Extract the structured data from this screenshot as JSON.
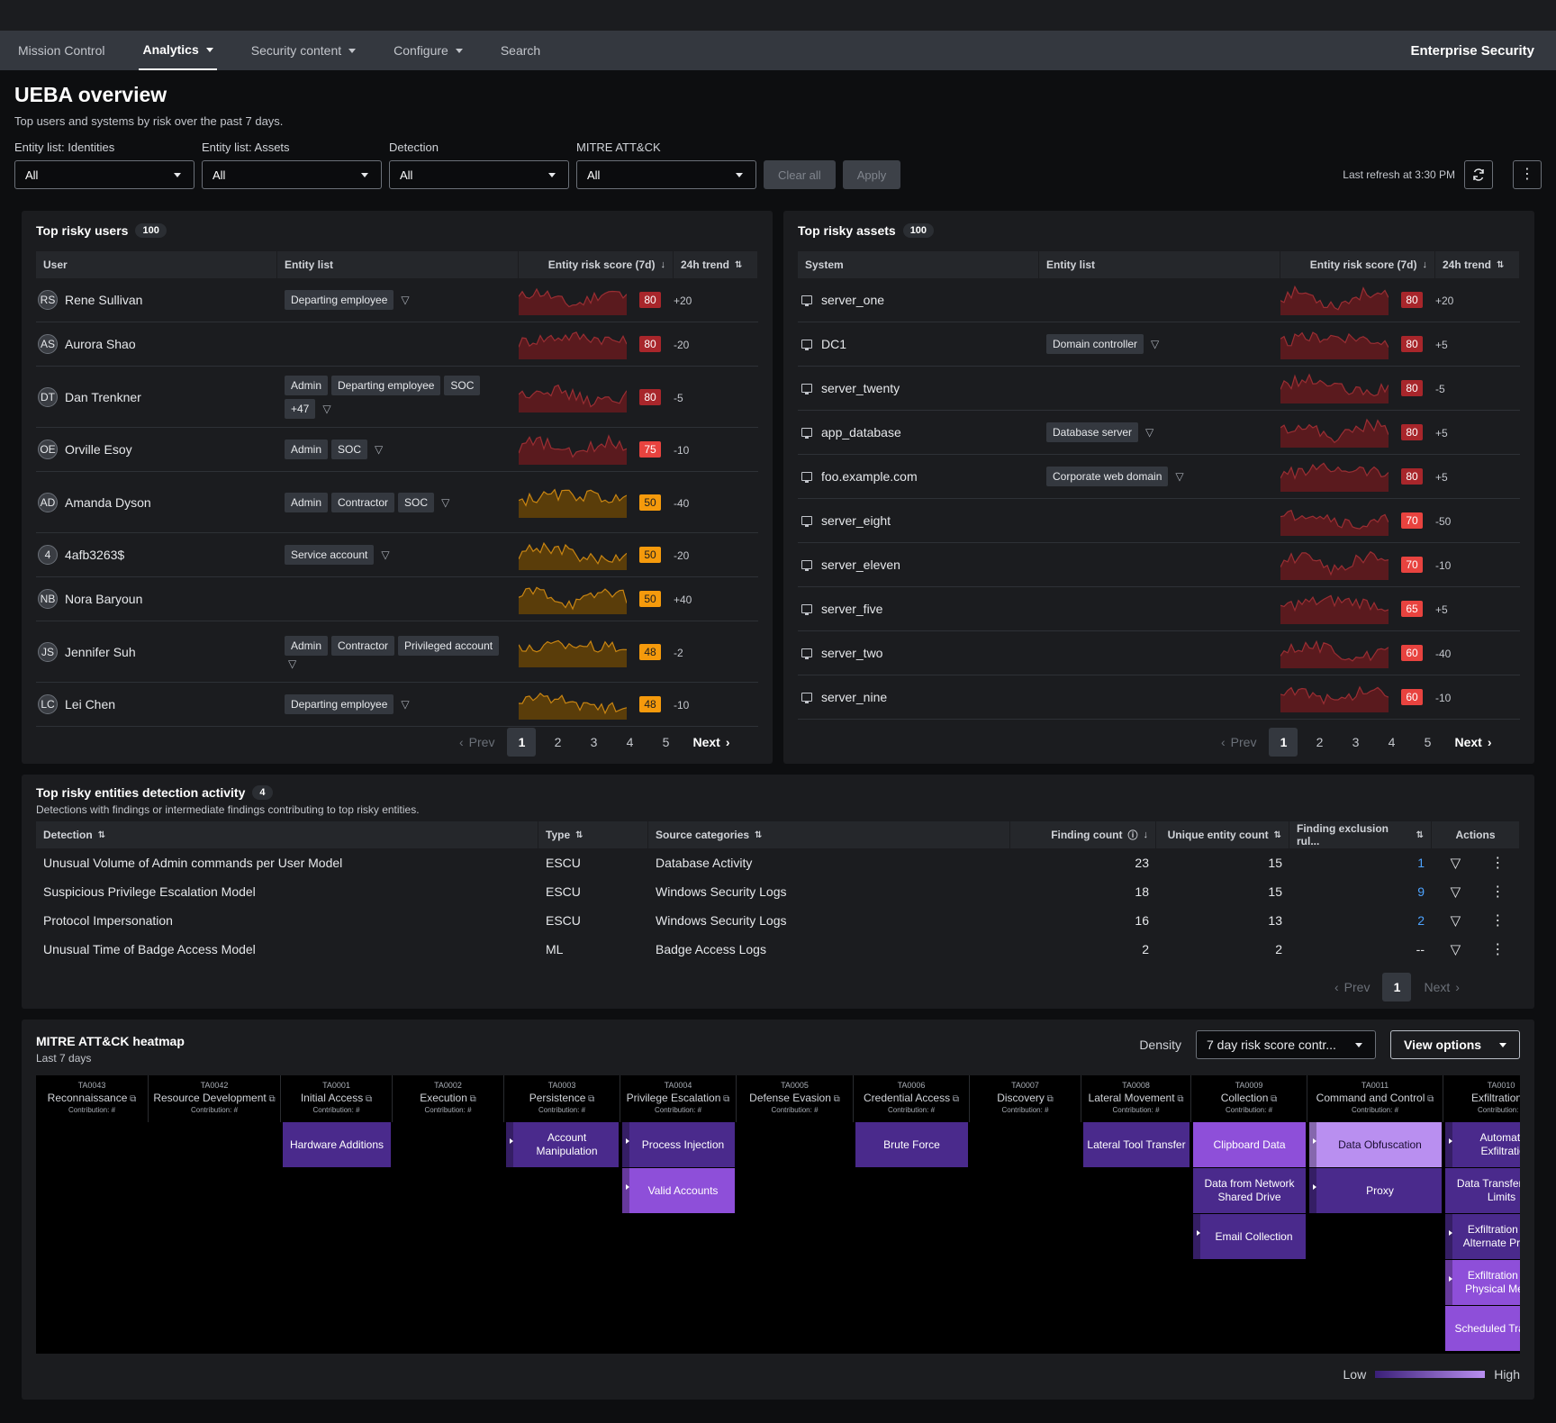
{
  "nav": {
    "items": [
      {
        "label": "Mission Control",
        "active": false,
        "caret": false
      },
      {
        "label": "Analytics",
        "active": true,
        "caret": true
      },
      {
        "label": "Security content",
        "active": false,
        "caret": true
      },
      {
        "label": "Configure",
        "active": false,
        "caret": true
      },
      {
        "label": "Search",
        "active": false,
        "caret": false
      }
    ],
    "brand": "Enterprise Security"
  },
  "header": {
    "title": "UEBA overview",
    "subtitle": "Top users and systems by risk over the past 7 days."
  },
  "filters": {
    "items": [
      {
        "label": "Entity list: Identities",
        "value": "All"
      },
      {
        "label": "Entity list: Assets",
        "value": "All"
      },
      {
        "label": "Detection",
        "value": "All"
      },
      {
        "label": "MITRE ATT&CK",
        "value": "All"
      }
    ],
    "clear_label": "Clear all",
    "apply_label": "Apply",
    "last_refresh": "Last refresh at 3:30 PM"
  },
  "colors": {
    "score_high": "#a8262b",
    "score_med": "#e8433f",
    "score_warn": "#f59a0c",
    "spark_red": "#5a1a1e",
    "spark_amber": "#5a3d0a"
  },
  "users": {
    "title": "Top risky users",
    "count": "100",
    "columns": [
      "User",
      "Entity list",
      "Entity risk score (7d)",
      "24h trend"
    ],
    "rows": [
      {
        "initials": "RS",
        "name": "Rene Sullivan",
        "tags": [
          "Departing employee"
        ],
        "score": "80",
        "trend": "+20",
        "level": "high",
        "more": ""
      },
      {
        "initials": "AS",
        "name": "Aurora Shao",
        "tags": [],
        "score": "80",
        "trend": "-20",
        "level": "high",
        "more": ""
      },
      {
        "initials": "DT",
        "name": "Dan Trenkner",
        "tags": [
          "Admin",
          "Departing employee",
          "SOC"
        ],
        "score": "80",
        "trend": "-5",
        "level": "high",
        "more": "+47"
      },
      {
        "initials": "OE",
        "name": "Orville Esoy",
        "tags": [
          "Admin",
          "SOC"
        ],
        "score": "75",
        "trend": "-10",
        "level": "med",
        "more": ""
      },
      {
        "initials": "AD",
        "name": "Amanda Dyson",
        "tags": [
          "Admin",
          "Contractor",
          "SOC"
        ],
        "score": "50",
        "trend": "-40",
        "level": "warn",
        "more": ""
      },
      {
        "initials": "4",
        "name": "4afb3263$",
        "tags": [
          "Service account"
        ],
        "score": "50",
        "trend": "-20",
        "level": "warn",
        "more": ""
      },
      {
        "initials": "NB",
        "name": "Nora Baryoun",
        "tags": [],
        "score": "50",
        "trend": "+40",
        "level": "warn",
        "more": ""
      },
      {
        "initials": "JS",
        "name": "Jennifer Suh",
        "tags": [
          "Admin",
          "Contractor",
          "Privileged account"
        ],
        "score": "48",
        "trend": "-2",
        "level": "warn",
        "more": ""
      },
      {
        "initials": "LC",
        "name": "Lei Chen",
        "tags": [
          "Departing employee"
        ],
        "score": "48",
        "trend": "-10",
        "level": "warn",
        "more": ""
      }
    ],
    "pager": {
      "prev": "Prev",
      "next": "Next",
      "pages": [
        "1",
        "2",
        "3",
        "4",
        "5"
      ]
    }
  },
  "assets": {
    "title": "Top risky assets",
    "count": "100",
    "columns": [
      "System",
      "Entity list",
      "Entity risk score (7d)",
      "24h trend"
    ],
    "rows": [
      {
        "name": "server_one",
        "tags": [],
        "score": "80",
        "trend": "+20",
        "level": "high"
      },
      {
        "name": "DC1",
        "tags": [
          "Domain controller"
        ],
        "score": "80",
        "trend": "+5",
        "level": "high"
      },
      {
        "name": "server_twenty",
        "tags": [],
        "score": "80",
        "trend": "-5",
        "level": "high"
      },
      {
        "name": "app_database",
        "tags": [
          "Database server"
        ],
        "score": "80",
        "trend": "+5",
        "level": "high"
      },
      {
        "name": "foo.example.com",
        "tags": [
          "Corporate web domain"
        ],
        "score": "80",
        "trend": "+5",
        "level": "high"
      },
      {
        "name": "server_eight",
        "tags": [],
        "score": "70",
        "trend": "-50",
        "level": "med"
      },
      {
        "name": "server_eleven",
        "tags": [],
        "score": "70",
        "trend": "-10",
        "level": "med"
      },
      {
        "name": "server_five",
        "tags": [],
        "score": "65",
        "trend": "+5",
        "level": "med"
      },
      {
        "name": "server_two",
        "tags": [],
        "score": "60",
        "trend": "-40",
        "level": "med"
      },
      {
        "name": "server_nine",
        "tags": [],
        "score": "60",
        "trend": "-10",
        "level": "med"
      }
    ],
    "pager": {
      "prev": "Prev",
      "next": "Next",
      "pages": [
        "1",
        "2",
        "3",
        "4",
        "5"
      ]
    }
  },
  "detections": {
    "title": "Top risky entities detection activity",
    "count": "4",
    "subtitle": "Detections with findings or intermediate findings contributing to top risky entities.",
    "columns": [
      "Detection",
      "Type",
      "Source categories",
      "Finding count",
      "Unique entity count",
      "Finding exclusion rul...",
      "Actions"
    ],
    "rows": [
      {
        "name": "Unusual Volume of Admin commands per User Model",
        "type": "ESCU",
        "source": "Database Activity",
        "findings": "23",
        "entities": "15",
        "exclusions": "1"
      },
      {
        "name": "Suspicious Privilege Escalation Model",
        "type": "ESCU",
        "source": "Windows Security Logs",
        "findings": "18",
        "entities": "15",
        "exclusions": "9"
      },
      {
        "name": "Protocol Impersonation",
        "type": "ESCU",
        "source": "Windows Security Logs",
        "findings": "16",
        "entities": "13",
        "exclusions": "2"
      },
      {
        "name": "Unusual Time of Badge Access Model",
        "type": "ML",
        "source": "Badge Access Logs",
        "findings": "2",
        "entities": "2",
        "exclusions": "--"
      }
    ],
    "pager": {
      "prev": "Prev",
      "next": "Next",
      "pages": [
        "1"
      ]
    }
  },
  "heatmap": {
    "title": "MITRE ATT&CK heatmap",
    "subtitle": "Last 7 days",
    "density_label": "Density",
    "density_value": "7 day risk score contr...",
    "view_options": "View options",
    "contribution_label": "Contribution: #",
    "legend_low": "Low",
    "legend_high": "High",
    "tactics": [
      {
        "id": "TA0043",
        "name": "Reconnaissance"
      },
      {
        "id": "TA0042",
        "name": "Resource Development"
      },
      {
        "id": "TA0001",
        "name": "Initial Access"
      },
      {
        "id": "TA0002",
        "name": "Execution"
      },
      {
        "id": "TA0003",
        "name": "Persistence"
      },
      {
        "id": "TA0004",
        "name": "Privilege Escalation"
      },
      {
        "id": "TA0005",
        "name": "Defense Evasion"
      },
      {
        "id": "TA0006",
        "name": "Credential Access"
      },
      {
        "id": "TA0007",
        "name": "Discovery"
      },
      {
        "id": "TA0008",
        "name": "Lateral Movement"
      },
      {
        "id": "TA0009",
        "name": "Collection"
      },
      {
        "id": "TA0011",
        "name": "Command and Control"
      },
      {
        "id": "TA0010",
        "name": "Exfiltration"
      }
    ],
    "cells": [
      {
        "col": 2,
        "row": 0,
        "label": "Hardware Additions",
        "shade": "dark",
        "sub": false
      },
      {
        "col": 4,
        "row": 0,
        "label": "Account Manipulation",
        "shade": "dark",
        "sub": true
      },
      {
        "col": 5,
        "row": 0,
        "label": "Process Injection",
        "shade": "dark",
        "sub": true
      },
      {
        "col": 5,
        "row": 1,
        "label": "Valid Accounts",
        "shade": "mid",
        "sub": true
      },
      {
        "col": 7,
        "row": 0,
        "label": "Brute Force",
        "shade": "dark",
        "sub": false
      },
      {
        "col": 9,
        "row": 0,
        "label": "Lateral Tool Transfer",
        "shade": "dark",
        "sub": false
      },
      {
        "col": 10,
        "row": 0,
        "label": "Clipboard Data",
        "shade": "mid",
        "sub": false
      },
      {
        "col": 10,
        "row": 1,
        "label": "Data from Network Shared Drive",
        "shade": "dark",
        "sub": false
      },
      {
        "col": 10,
        "row": 2,
        "label": "Email Collection",
        "shade": "dark",
        "sub": true
      },
      {
        "col": 11,
        "row": 0,
        "label": "Data Obfuscation",
        "shade": "light",
        "sub": true
      },
      {
        "col": 11,
        "row": 1,
        "label": "Proxy",
        "shade": "dark",
        "sub": true
      },
      {
        "col": 12,
        "row": 0,
        "label": "Automated Exfiltration",
        "shade": "dark",
        "sub": true
      },
      {
        "col": 12,
        "row": 1,
        "label": "Data Transfer Size Limits",
        "shade": "dark",
        "sub": false
      },
      {
        "col": 12,
        "row": 2,
        "label": "Exfiltration Over Alternate Protocol",
        "shade": "dark",
        "sub": true
      },
      {
        "col": 12,
        "row": 3,
        "label": "Exfiltration Over Physical Medium",
        "shade": "mid",
        "sub": true
      },
      {
        "col": 12,
        "row": 4,
        "label": "Scheduled Transfer",
        "shade": "mid",
        "sub": false
      }
    ]
  }
}
